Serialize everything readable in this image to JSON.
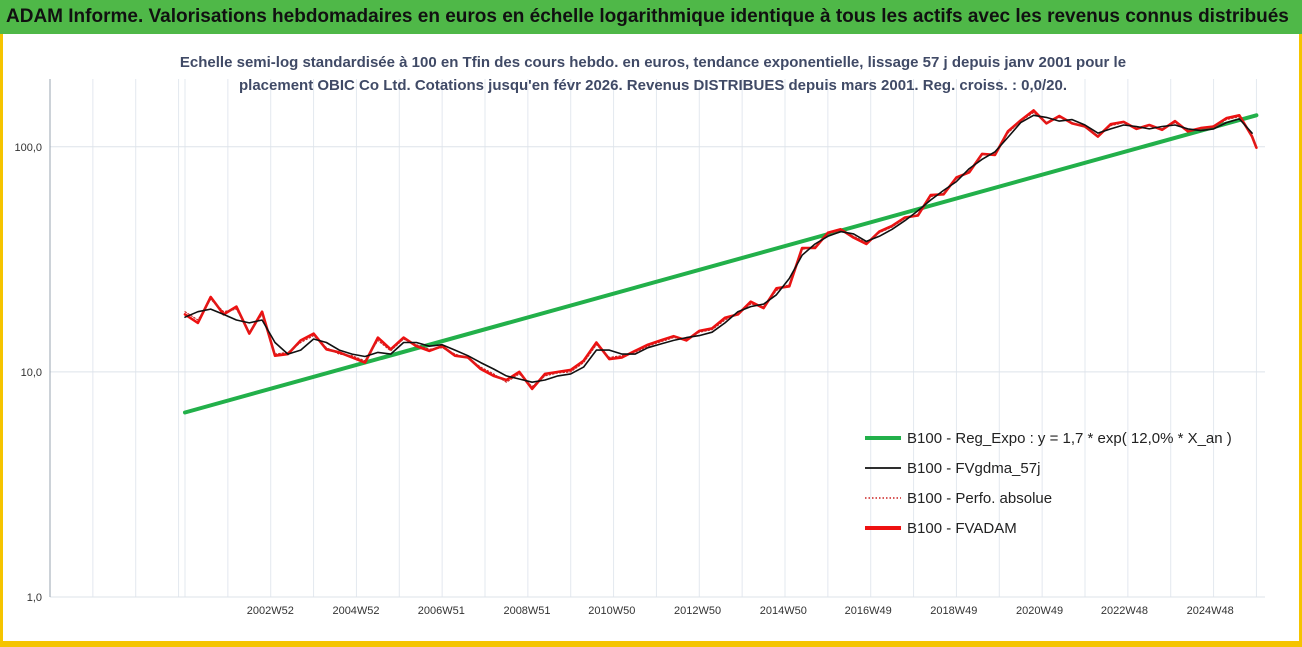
{
  "banner": {
    "title": "ADAM Informe. Valorisations hebdomadaires en euros en échelle logarithmique identique à tous les actifs avec les revenus connus distribués"
  },
  "chart_data": {
    "type": "line",
    "title": "Echelle semi-log standardisée à 100 en Tfin des cours hebdo. en euros, tendance exponentielle, lissage 57 j depuis janv 2001 pour le placement OBIC Co Ltd. Cotations jusqu'en févr 2026. Revenus DISTRIBUES depuis mars 2001. Reg. croiss. : 0,0/20.",
    "title_lines": [
      "Echelle semi-log standardisée à 100 en Tfin des cours hebdo. en euros, tendance exponentielle, lissage 57 j depuis janv 2001 pour le",
      "placement OBIC Co Ltd. Cotations jusqu'en févr 2026. Revenus DISTRIBUES depuis mars 2001. Reg. croiss. : 0,0/20."
    ],
    "y_scale": "log",
    "ylim": [
      1,
      200
    ],
    "y_ticks": [
      {
        "value": 1,
        "label": "1,0"
      },
      {
        "value": 10,
        "label": "10,0"
      },
      {
        "value": 100,
        "label": "100,0"
      }
    ],
    "xlim": [
      1997.85,
      2026.2
    ],
    "x_ticks": [
      {
        "value": 2002.99,
        "label": "2002W52"
      },
      {
        "value": 2004.99,
        "label": "2004W52"
      },
      {
        "value": 2006.98,
        "label": "2006W51"
      },
      {
        "value": 2008.98,
        "label": "2008W51"
      },
      {
        "value": 2010.96,
        "label": "2010W50"
      },
      {
        "value": 2012.96,
        "label": "2012W50"
      },
      {
        "value": 2014.96,
        "label": "2014W50"
      },
      {
        "value": 2016.94,
        "label": "2016W49"
      },
      {
        "value": 2018.94,
        "label": "2018W49"
      },
      {
        "value": 2020.94,
        "label": "2020W49"
      },
      {
        "value": 2022.92,
        "label": "2022W48"
      },
      {
        "value": 2024.92,
        "label": "2024W48"
      }
    ],
    "x_gridlines": [
      1997.85,
      1998.85,
      1999.85,
      2000.85,
      2001.0,
      2002.0,
      2003.0,
      2004.0,
      2005.0,
      2006.0,
      2007.0,
      2008.0,
      2009.0,
      2010.0,
      2011.0,
      2012.0,
      2013.0,
      2014.0,
      2015.0,
      2016.0,
      2017.0,
      2018.0,
      2019.0,
      2020.0,
      2021.0,
      2022.0,
      2023.0,
      2024.0,
      2025.0,
      2026.0
    ],
    "grid": true,
    "legend": {
      "placement": "right",
      "entries": [
        {
          "label": "B100 - Reg_Expo : y = 1,7 * exp( 12,0% *  X_an )",
          "color": "#22b04a",
          "style": "solid-thick"
        },
        {
          "label": "B100 - FVgdma_57j",
          "color": "#111111",
          "style": "solid"
        },
        {
          "label": "B100 - Perfo. absolue",
          "color": "#cc2222",
          "style": "dotted"
        },
        {
          "label": "B100 - FVADAM",
          "color": "#ee1111",
          "style": "solid-thick"
        }
      ]
    },
    "series": [
      {
        "name": "B100 - Reg_Expo : y = 1,7 * exp( 12,0% *  X_an )",
        "color": "#22b04a",
        "x": [
          2001.0,
          2026.0
        ],
        "y": [
          6.6,
          138
        ]
      },
      {
        "name": "B100 - FVgdma_57j",
        "color": "#111111",
        "x": [
          2001.0,
          2001.3,
          2001.6,
          2001.9,
          2002.2,
          2002.5,
          2002.8,
          2003.1,
          2003.4,
          2003.7,
          2004.0,
          2004.3,
          2004.6,
          2004.9,
          2005.2,
          2005.5,
          2005.8,
          2006.1,
          2006.4,
          2006.7,
          2007.0,
          2007.3,
          2007.6,
          2007.9,
          2008.2,
          2008.5,
          2008.8,
          2009.1,
          2009.4,
          2009.7,
          2010.0,
          2010.3,
          2010.6,
          2010.9,
          2011.2,
          2011.5,
          2011.8,
          2012.1,
          2012.4,
          2012.7,
          2013.0,
          2013.3,
          2013.6,
          2013.9,
          2014.2,
          2014.5,
          2014.8,
          2015.1,
          2015.4,
          2015.7,
          2016.0,
          2016.3,
          2016.6,
          2016.9,
          2017.2,
          2017.5,
          2017.8,
          2018.1,
          2018.4,
          2018.7,
          2019.0,
          2019.3,
          2019.6,
          2019.9,
          2020.2,
          2020.5,
          2020.8,
          2021.1,
          2021.4,
          2021.7,
          2022.0,
          2022.3,
          2022.6,
          2022.9,
          2023.2,
          2023.5,
          2023.8,
          2024.1,
          2024.4,
          2024.7,
          2025.0,
          2025.3,
          2025.6,
          2025.9
        ],
        "y": [
          17.5,
          18.5,
          19.0,
          18.0,
          17.0,
          16.5,
          17.0,
          13.5,
          12.0,
          12.5,
          14.0,
          13.5,
          12.5,
          12.0,
          11.7,
          12.2,
          12.0,
          13.5,
          13.5,
          13.0,
          13.2,
          12.5,
          11.8,
          11.0,
          10.3,
          9.6,
          9.3,
          9.0,
          9.2,
          9.6,
          9.8,
          10.5,
          12.5,
          12.5,
          12.0,
          12.0,
          12.8,
          13.3,
          13.8,
          14.2,
          14.5,
          15.0,
          16.5,
          18.5,
          19.5,
          20.0,
          22.0,
          26.0,
          33.0,
          37.0,
          40.0,
          42.0,
          41.0,
          38.0,
          40.0,
          43.0,
          47.0,
          52.0,
          58.0,
          64.0,
          70.0,
          80.0,
          88.0,
          95.0,
          110.0,
          128.0,
          138.0,
          135.0,
          130.0,
          132.0,
          125.0,
          115.0,
          120.0,
          125.0,
          123.0,
          120.0,
          123.0,
          125.0,
          120.0,
          118.0,
          120.0,
          128.0,
          133.0,
          115.0
        ]
      },
      {
        "name": "B100 - Perfo. absolue",
        "color": "#cc2222",
        "x": [
          2001.0,
          2001.3,
          2001.6,
          2001.9,
          2002.2,
          2002.5,
          2002.8,
          2003.1,
          2003.4,
          2003.7,
          2004.0,
          2004.3,
          2004.6,
          2004.9,
          2005.2,
          2005.5,
          2005.8,
          2006.1,
          2006.4,
          2006.7,
          2007.0,
          2007.3,
          2007.6,
          2007.9,
          2008.2,
          2008.5,
          2008.8,
          2009.1,
          2009.4,
          2009.7,
          2010.0,
          2010.3,
          2010.6,
          2010.9,
          2011.2,
          2011.5,
          2011.8,
          2012.1,
          2012.4,
          2012.7,
          2013.0,
          2013.3,
          2013.6,
          2013.9,
          2014.2,
          2014.5,
          2014.8,
          2015.1,
          2015.4,
          2015.7,
          2016.0,
          2016.3,
          2016.6,
          2016.9,
          2017.2,
          2017.5,
          2017.8,
          2018.1,
          2018.4,
          2018.7,
          2019.0,
          2019.3,
          2019.6,
          2019.9,
          2020.2,
          2020.5,
          2020.8,
          2021.1,
          2021.4,
          2021.7,
          2022.0,
          2022.3,
          2022.6,
          2022.9,
          2023.2,
          2023.5,
          2023.8,
          2024.1,
          2024.4,
          2024.7,
          2025.0,
          2025.3,
          2025.6,
          2025.9,
          2026.0
        ],
        "y": [
          18.5,
          17.0,
          21.0,
          18.5,
          19.0,
          15.0,
          18.0,
          12.0,
          12.2,
          13.5,
          14.5,
          12.8,
          12.0,
          11.8,
          11.2,
          13.8,
          12.4,
          14.0,
          13.2,
          12.6,
          12.8,
          12.0,
          11.5,
          10.5,
          9.8,
          9.0,
          9.8,
          8.6,
          9.6,
          9.9,
          10.0,
          11.0,
          13.2,
          11.6,
          11.8,
          12.2,
          13.0,
          13.6,
          14.2,
          14.0,
          15.0,
          15.4,
          17.0,
          18.2,
          20.0,
          19.5,
          23.0,
          24.5,
          35.0,
          36.0,
          41.0,
          42.5,
          40.0,
          37.5,
          41.5,
          44.0,
          48.0,
          50.0,
          60.0,
          62.0,
          72.0,
          78.0,
          92.0,
          93.0,
          115.0,
          130.0,
          142.0,
          128.0,
          135.0,
          128.0,
          122.0,
          112.0,
          124.0,
          128.0,
          121.0,
          124.0,
          120.0,
          128.0,
          118.0,
          120.0,
          122.0,
          132.0,
          136.0,
          112.0,
          100.0
        ]
      },
      {
        "name": "B100 - FVADAM",
        "color": "#ee1111",
        "x": [
          2001.0,
          2001.3,
          2001.6,
          2001.9,
          2002.2,
          2002.5,
          2002.8,
          2003.1,
          2003.4,
          2003.7,
          2004.0,
          2004.3,
          2004.6,
          2004.9,
          2005.2,
          2005.5,
          2005.8,
          2006.1,
          2006.4,
          2006.7,
          2007.0,
          2007.3,
          2007.6,
          2007.9,
          2008.2,
          2008.5,
          2008.8,
          2009.1,
          2009.4,
          2009.7,
          2010.0,
          2010.3,
          2010.6,
          2010.9,
          2011.2,
          2011.5,
          2011.8,
          2012.1,
          2012.4,
          2012.7,
          2013.0,
          2013.3,
          2013.6,
          2013.9,
          2014.2,
          2014.5,
          2014.8,
          2015.1,
          2015.4,
          2015.7,
          2016.0,
          2016.3,
          2016.6,
          2016.9,
          2017.2,
          2017.5,
          2017.8,
          2018.1,
          2018.4,
          2018.7,
          2019.0,
          2019.3,
          2019.6,
          2019.9,
          2020.2,
          2020.5,
          2020.8,
          2021.1,
          2021.4,
          2021.7,
          2022.0,
          2022.3,
          2022.6,
          2022.9,
          2023.2,
          2023.5,
          2023.8,
          2024.1,
          2024.4,
          2024.7,
          2025.0,
          2025.3,
          2025.6,
          2025.9,
          2026.0
        ],
        "y": [
          18.0,
          16.5,
          21.5,
          18.0,
          19.5,
          14.8,
          18.5,
          11.8,
          12.0,
          13.8,
          14.8,
          12.6,
          12.2,
          11.6,
          11.0,
          14.2,
          12.6,
          14.2,
          13.0,
          12.4,
          13.0,
          11.8,
          11.6,
          10.3,
          9.6,
          9.2,
          10.0,
          8.4,
          9.8,
          10.0,
          10.2,
          11.2,
          13.5,
          11.4,
          11.6,
          12.4,
          13.2,
          13.8,
          14.4,
          13.8,
          15.2,
          15.6,
          17.4,
          18.0,
          20.5,
          19.2,
          23.5,
          24.0,
          35.5,
          35.5,
          41.5,
          43.0,
          39.5,
          37.0,
          42.0,
          44.5,
          48.5,
          49.5,
          61.0,
          61.5,
          73.0,
          77.0,
          93.0,
          92.0,
          117.0,
          131.0,
          145.0,
          127.0,
          137.0,
          127.0,
          123.0,
          111.0,
          126.0,
          129.0,
          120.0,
          125.0,
          119.0,
          130.0,
          117.0,
          121.0,
          123.0,
          134.0,
          138.0,
          111.0,
          99.0
        ]
      }
    ]
  }
}
